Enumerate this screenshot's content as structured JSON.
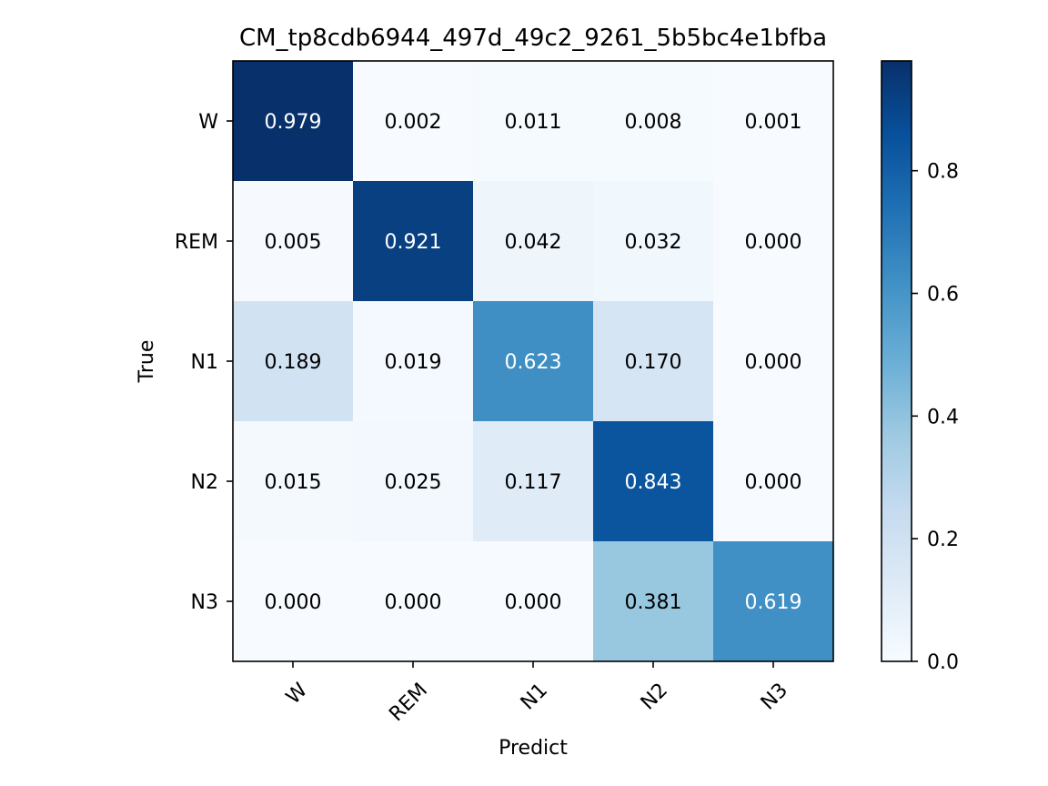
{
  "chart_data": {
    "type": "heatmap",
    "title": "CM_tp8cdb6944_497d_49c2_9261_5b5bc4e1bfba",
    "xlabel": "Predict",
    "ylabel": "True",
    "x_categories": [
      "W",
      "REM",
      "N1",
      "N2",
      "N3"
    ],
    "y_categories": [
      "W",
      "REM",
      "N1",
      "N2",
      "N3"
    ],
    "values": [
      [
        0.979,
        0.002,
        0.011,
        0.008,
        0.001
      ],
      [
        0.005,
        0.921,
        0.042,
        0.032,
        0.0
      ],
      [
        0.189,
        0.019,
        0.623,
        0.17,
        0.0
      ],
      [
        0.015,
        0.025,
        0.117,
        0.843,
        0.0
      ],
      [
        0.0,
        0.0,
        0.0,
        0.381,
        0.619
      ]
    ],
    "value_labels": [
      [
        "0.979",
        "0.002",
        "0.011",
        "0.008",
        "0.001"
      ],
      [
        "0.005",
        "0.921",
        "0.042",
        "0.032",
        "0.000"
      ],
      [
        "0.189",
        "0.019",
        "0.623",
        "0.170",
        "0.000"
      ],
      [
        "0.015",
        "0.025",
        "0.117",
        "0.843",
        "0.000"
      ],
      [
        "0.000",
        "0.000",
        "0.000",
        "0.381",
        "0.619"
      ]
    ],
    "colormap": "Blues",
    "colorbar": {
      "range": [
        0,
        0.979
      ],
      "ticks": [
        0.0,
        0.2,
        0.4,
        0.6,
        0.8
      ],
      "tick_labels": [
        "0.0",
        "0.2",
        "0.4",
        "0.6",
        "0.8"
      ]
    },
    "grid": false
  }
}
